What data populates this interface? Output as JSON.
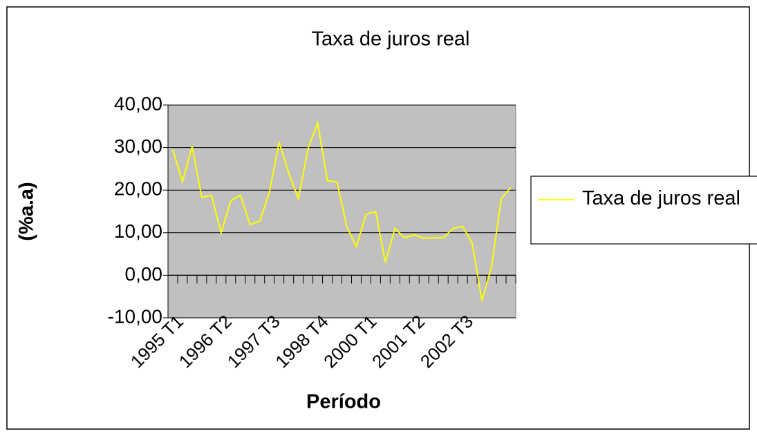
{
  "chart_data": {
    "type": "line",
    "title": "Taxa de juros real",
    "x_label": "Período",
    "y_label": "(%a.a)",
    "categories": [
      "1995 T1",
      null,
      null,
      null,
      null,
      "1996 T2",
      null,
      null,
      null,
      null,
      "1997 T3",
      null,
      null,
      null,
      null,
      "1998 T4",
      null,
      null,
      null,
      null,
      "2000 T1",
      null,
      null,
      null,
      null,
      "2001 T2",
      null,
      null,
      null,
      null,
      "2002 T3",
      null,
      null,
      null,
      null,
      null
    ],
    "series": [
      {
        "name": "Taxa de juros real",
        "color": "#ffff00",
        "values": [
          29.5,
          22,
          30.3,
          18.3,
          18.8,
          10,
          17.5,
          18.8,
          11.9,
          12.7,
          19.5,
          31.3,
          24,
          18,
          29.8,
          35.8,
          22.2,
          21.9,
          11.5,
          6.7,
          14.3,
          15,
          3,
          11,
          8.8,
          9.5,
          8.7,
          8.8,
          8.8,
          11,
          11.5,
          7.5,
          -6,
          2,
          18,
          20.7
        ]
      }
    ],
    "ylim": [
      -10,
      40
    ],
    "yticks": [
      {
        "value": -10,
        "label": "-10,00"
      },
      {
        "value": 0,
        "label": "0,00"
      },
      {
        "value": 10,
        "label": "10,00"
      },
      {
        "value": 20,
        "label": "20,00"
      },
      {
        "value": 30,
        "label": "30,00"
      },
      {
        "value": 40,
        "label": "40,00"
      }
    ],
    "grid": true,
    "legend": "right",
    "plot_background": "#c0c0c0"
  }
}
